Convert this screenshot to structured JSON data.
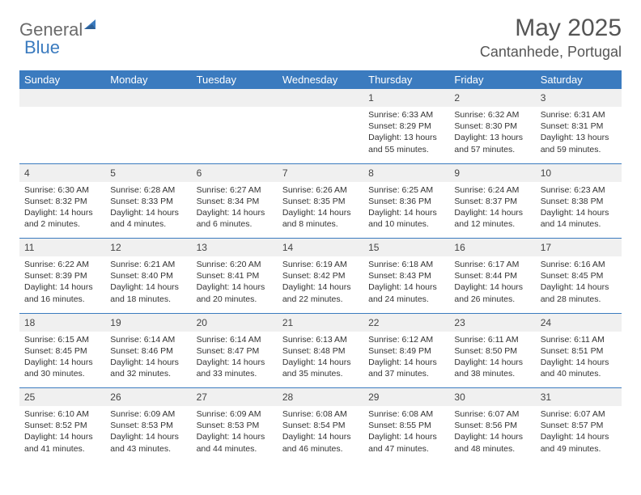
{
  "logo": {
    "text1": "General",
    "text2": "Blue"
  },
  "title": "May 2025",
  "location": "Cantanhede, Portugal",
  "colors": {
    "header_bg": "#3b7bbf",
    "header_text": "#ffffff",
    "daynum_bg": "#f0f0f0",
    "border": "#3b7bbf",
    "text": "#333333",
    "title_text": "#555555",
    "logo_gray": "#6b6b6b",
    "logo_blue": "#3b7bbf"
  },
  "weekdays": [
    "Sunday",
    "Monday",
    "Tuesday",
    "Wednesday",
    "Thursday",
    "Friday",
    "Saturday"
  ],
  "weeks": [
    [
      null,
      null,
      null,
      null,
      {
        "n": "1",
        "sr": "Sunrise: 6:33 AM",
        "ss": "Sunset: 8:29 PM",
        "dl": "Daylight: 13 hours and 55 minutes."
      },
      {
        "n": "2",
        "sr": "Sunrise: 6:32 AM",
        "ss": "Sunset: 8:30 PM",
        "dl": "Daylight: 13 hours and 57 minutes."
      },
      {
        "n": "3",
        "sr": "Sunrise: 6:31 AM",
        "ss": "Sunset: 8:31 PM",
        "dl": "Daylight: 13 hours and 59 minutes."
      }
    ],
    [
      {
        "n": "4",
        "sr": "Sunrise: 6:30 AM",
        "ss": "Sunset: 8:32 PM",
        "dl": "Daylight: 14 hours and 2 minutes."
      },
      {
        "n": "5",
        "sr": "Sunrise: 6:28 AM",
        "ss": "Sunset: 8:33 PM",
        "dl": "Daylight: 14 hours and 4 minutes."
      },
      {
        "n": "6",
        "sr": "Sunrise: 6:27 AM",
        "ss": "Sunset: 8:34 PM",
        "dl": "Daylight: 14 hours and 6 minutes."
      },
      {
        "n": "7",
        "sr": "Sunrise: 6:26 AM",
        "ss": "Sunset: 8:35 PM",
        "dl": "Daylight: 14 hours and 8 minutes."
      },
      {
        "n": "8",
        "sr": "Sunrise: 6:25 AM",
        "ss": "Sunset: 8:36 PM",
        "dl": "Daylight: 14 hours and 10 minutes."
      },
      {
        "n": "9",
        "sr": "Sunrise: 6:24 AM",
        "ss": "Sunset: 8:37 PM",
        "dl": "Daylight: 14 hours and 12 minutes."
      },
      {
        "n": "10",
        "sr": "Sunrise: 6:23 AM",
        "ss": "Sunset: 8:38 PM",
        "dl": "Daylight: 14 hours and 14 minutes."
      }
    ],
    [
      {
        "n": "11",
        "sr": "Sunrise: 6:22 AM",
        "ss": "Sunset: 8:39 PM",
        "dl": "Daylight: 14 hours and 16 minutes."
      },
      {
        "n": "12",
        "sr": "Sunrise: 6:21 AM",
        "ss": "Sunset: 8:40 PM",
        "dl": "Daylight: 14 hours and 18 minutes."
      },
      {
        "n": "13",
        "sr": "Sunrise: 6:20 AM",
        "ss": "Sunset: 8:41 PM",
        "dl": "Daylight: 14 hours and 20 minutes."
      },
      {
        "n": "14",
        "sr": "Sunrise: 6:19 AM",
        "ss": "Sunset: 8:42 PM",
        "dl": "Daylight: 14 hours and 22 minutes."
      },
      {
        "n": "15",
        "sr": "Sunrise: 6:18 AM",
        "ss": "Sunset: 8:43 PM",
        "dl": "Daylight: 14 hours and 24 minutes."
      },
      {
        "n": "16",
        "sr": "Sunrise: 6:17 AM",
        "ss": "Sunset: 8:44 PM",
        "dl": "Daylight: 14 hours and 26 minutes."
      },
      {
        "n": "17",
        "sr": "Sunrise: 6:16 AM",
        "ss": "Sunset: 8:45 PM",
        "dl": "Daylight: 14 hours and 28 minutes."
      }
    ],
    [
      {
        "n": "18",
        "sr": "Sunrise: 6:15 AM",
        "ss": "Sunset: 8:45 PM",
        "dl": "Daylight: 14 hours and 30 minutes."
      },
      {
        "n": "19",
        "sr": "Sunrise: 6:14 AM",
        "ss": "Sunset: 8:46 PM",
        "dl": "Daylight: 14 hours and 32 minutes."
      },
      {
        "n": "20",
        "sr": "Sunrise: 6:14 AM",
        "ss": "Sunset: 8:47 PM",
        "dl": "Daylight: 14 hours and 33 minutes."
      },
      {
        "n": "21",
        "sr": "Sunrise: 6:13 AM",
        "ss": "Sunset: 8:48 PM",
        "dl": "Daylight: 14 hours and 35 minutes."
      },
      {
        "n": "22",
        "sr": "Sunrise: 6:12 AM",
        "ss": "Sunset: 8:49 PM",
        "dl": "Daylight: 14 hours and 37 minutes."
      },
      {
        "n": "23",
        "sr": "Sunrise: 6:11 AM",
        "ss": "Sunset: 8:50 PM",
        "dl": "Daylight: 14 hours and 38 minutes."
      },
      {
        "n": "24",
        "sr": "Sunrise: 6:11 AM",
        "ss": "Sunset: 8:51 PM",
        "dl": "Daylight: 14 hours and 40 minutes."
      }
    ],
    [
      {
        "n": "25",
        "sr": "Sunrise: 6:10 AM",
        "ss": "Sunset: 8:52 PM",
        "dl": "Daylight: 14 hours and 41 minutes."
      },
      {
        "n": "26",
        "sr": "Sunrise: 6:09 AM",
        "ss": "Sunset: 8:53 PM",
        "dl": "Daylight: 14 hours and 43 minutes."
      },
      {
        "n": "27",
        "sr": "Sunrise: 6:09 AM",
        "ss": "Sunset: 8:53 PM",
        "dl": "Daylight: 14 hours and 44 minutes."
      },
      {
        "n": "28",
        "sr": "Sunrise: 6:08 AM",
        "ss": "Sunset: 8:54 PM",
        "dl": "Daylight: 14 hours and 46 minutes."
      },
      {
        "n": "29",
        "sr": "Sunrise: 6:08 AM",
        "ss": "Sunset: 8:55 PM",
        "dl": "Daylight: 14 hours and 47 minutes."
      },
      {
        "n": "30",
        "sr": "Sunrise: 6:07 AM",
        "ss": "Sunset: 8:56 PM",
        "dl": "Daylight: 14 hours and 48 minutes."
      },
      {
        "n": "31",
        "sr": "Sunrise: 6:07 AM",
        "ss": "Sunset: 8:57 PM",
        "dl": "Daylight: 14 hours and 49 minutes."
      }
    ]
  ]
}
